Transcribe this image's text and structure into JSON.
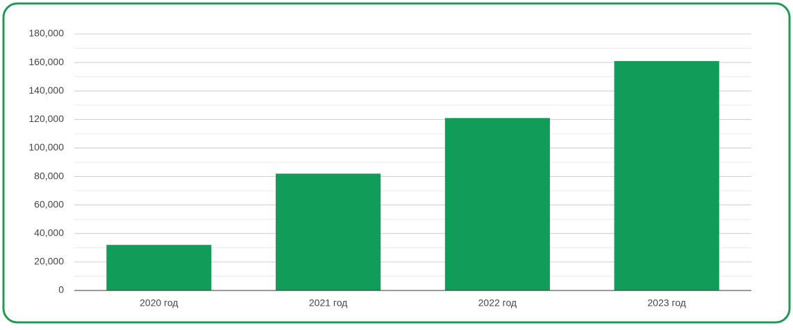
{
  "chart_data": {
    "type": "bar",
    "categories": [
      "2020 год",
      "2021 год",
      "2022 год",
      "2023 год"
    ],
    "values": [
      32000,
      82000,
      121000,
      161000
    ],
    "color": "#129c5a",
    "ylim": [
      0,
      180000
    ],
    "yticks": [
      0,
      {
        "value": 20000,
        "label": "20,000"
      },
      {
        "value": 40000,
        "label": "40,000"
      },
      {
        "value": 60000,
        "label": "60,000"
      },
      {
        "value": 80000,
        "label": "80,000"
      },
      {
        "value": 100000,
        "label": "100,000"
      },
      {
        "value": 120000,
        "label": "120,000"
      },
      {
        "value": 140000,
        "label": "140,000"
      },
      {
        "value": 160000,
        "label": "160,000"
      },
      {
        "value": 180000,
        "label": "180,000"
      }
    ],
    "grid": true
  }
}
